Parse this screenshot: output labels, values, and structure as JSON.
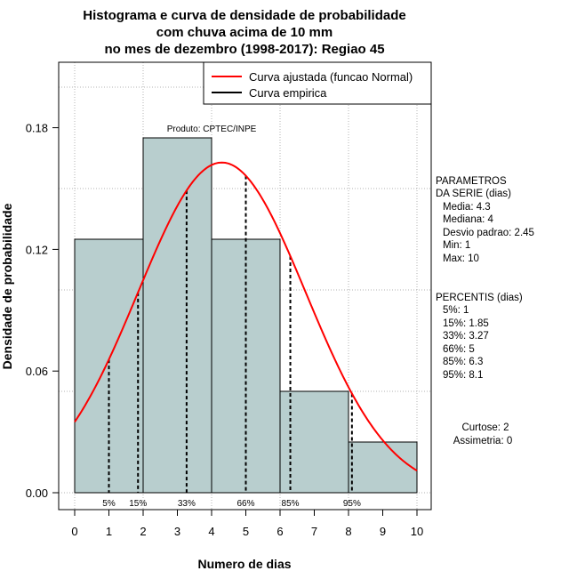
{
  "chart_data": {
    "type": "histogram",
    "title_lines": [
      "Histograma e curva de densidade de probabilidade",
      "com chuva acima de 10 mm",
      "no mes de dezembro (1998-2017): Regiao 45"
    ],
    "xlabel": "Numero de dias",
    "ylabel": "Densidade de probabilidade",
    "xlim": [
      0,
      10
    ],
    "ylim": [
      0,
      0.21
    ],
    "x_ticks": [
      "0",
      "1",
      "2",
      "3",
      "4",
      "5",
      "6",
      "7",
      "8",
      "9",
      "10"
    ],
    "y_ticks": [
      "0.00",
      "0.06",
      "0.12",
      "0.18"
    ],
    "y_tick_values": [
      0,
      0.06,
      0.12,
      0.18
    ],
    "grid": true,
    "product_label": "Produto: CPTEC/INPE",
    "bins": [
      {
        "x0": 0,
        "x1": 2,
        "density": 0.125
      },
      {
        "x0": 2,
        "x1": 4,
        "density": 0.175
      },
      {
        "x0": 4,
        "x1": 6,
        "density": 0.125
      },
      {
        "x0": 6,
        "x1": 8,
        "density": 0.05
      },
      {
        "x0": 8,
        "x1": 10,
        "density": 0.025
      }
    ],
    "normal_fit": {
      "mean": 4.3,
      "sd": 2.45,
      "x_from": 0,
      "x_to": 10
    },
    "percentile_lines": [
      {
        "label": "5%",
        "x": 1
      },
      {
        "label": "15%",
        "x": 1.85
      },
      {
        "label": "33%",
        "x": 3.27
      },
      {
        "label": "66%",
        "x": 5
      },
      {
        "label": "85%",
        "x": 6.3
      },
      {
        "label": "95%",
        "x": 8.1
      }
    ],
    "legend": {
      "placement": "top-right",
      "entries": [
        {
          "label": "Curva ajustada (funcao Normal)",
          "color": "#ff0000"
        },
        {
          "label": "Curva empirica",
          "color": "#000000"
        }
      ]
    },
    "colors": {
      "bar_fill": "#b8cece",
      "curve": "#ff0000",
      "grid": "#b3b3b3"
    }
  },
  "stats": {
    "params_title": [
      "PARAMETROS",
      "DA SERIE (dias)"
    ],
    "params": [
      "Media: 4.3",
      "Mediana: 4",
      "Desvio padrao: 2.45",
      "Min: 1",
      "Max: 10"
    ],
    "percentis_title": "PERCENTIS (dias)",
    "percentis": [
      "5%: 1",
      "15%: 1.85",
      "33%: 3.27",
      "66%: 5",
      "85%: 6.3",
      "95%: 8.1"
    ],
    "shape": [
      "Curtose: 2",
      "Assimetria: 0"
    ]
  }
}
